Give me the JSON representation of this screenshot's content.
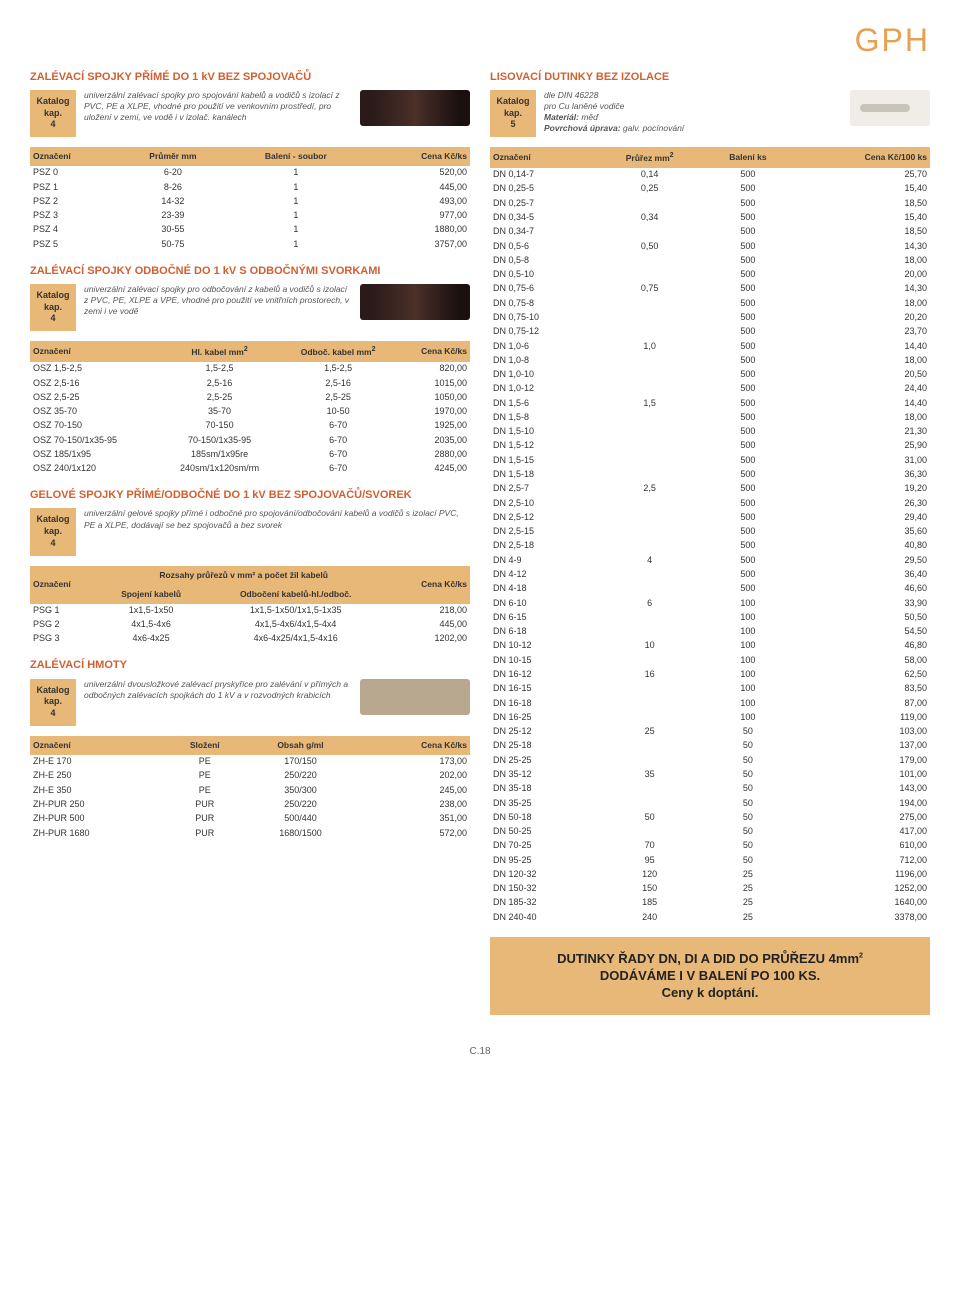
{
  "brand": "GPH",
  "page_num": "C.18",
  "left_sections": [
    {
      "title": "ZALÉVACÍ SPOJKY PŘÍMÉ DO 1 kV BEZ SPOJOVAČŮ",
      "kap": [
        "Katalog",
        "kap.",
        "4"
      ],
      "desc": "univerzální zalévací spojky pro spojování kabelů a vodičů s izolací z PVC, PE a XLPE, vhodné pro použití ve venkovním prostředí, pro uložení v zemi, ve vodě i v izolač. kanálech",
      "headers": [
        "Označení",
        "Průměr mm",
        "Balení - soubor",
        "Cena Kč/ks"
      ],
      "rows": [
        [
          "PSZ 0",
          "6-20",
          "1",
          "520,00"
        ],
        [
          "PSZ 1",
          "8-26",
          "1",
          "445,00"
        ],
        [
          "PSZ 2",
          "14-32",
          "1",
          "493,00"
        ],
        [
          "PSZ 3",
          "23-39",
          "1",
          "977,00"
        ],
        [
          "PSZ 4",
          "30-55",
          "1",
          "1880,00"
        ],
        [
          "PSZ 5",
          "50-75",
          "1",
          "3757,00"
        ]
      ]
    },
    {
      "title": "ZALÉVACÍ SPOJKY ODBOČNÉ DO 1 kV S ODBOČNÝMI SVORKAMI",
      "kap": [
        "Katalog",
        "kap.",
        "4"
      ],
      "desc": "univerzální zalévací spojky pro odbočování z kabelů a vodičů s izolací z PVC, PE, XLPE a VPE, vhodné pro použití ve vnitřních prostorech, v zemi i ve vodě",
      "headers": [
        "Označení",
        "Hl. kabel mm²",
        "Odboč. kabel mm²",
        "Cena Kč/ks"
      ],
      "rows": [
        [
          "OSZ 1,5-2,5",
          "1,5-2,5",
          "1,5-2,5",
          "820,00"
        ],
        [
          "OSZ 2,5-16",
          "2,5-16",
          "2,5-16",
          "1015,00"
        ],
        [
          "OSZ 2,5-25",
          "2,5-25",
          "2,5-25",
          "1050,00"
        ],
        [
          "OSZ 35-70",
          "35-70",
          "10-50",
          "1970,00"
        ],
        [
          "OSZ 70-150",
          "70-150",
          "6-70",
          "1925,00"
        ],
        [
          "OSZ 70-150/1x35-95",
          "70-150/1x35-95",
          "6-70",
          "2035,00"
        ],
        [
          "OSZ 185/1x95",
          "185sm/1x95re",
          "6-70",
          "2880,00"
        ],
        [
          "OSZ 240/1x120",
          "240sm/1x120sm/rm",
          "6-70",
          "4245,00"
        ]
      ]
    },
    {
      "title": "GELOVÉ SPOJKY PŘÍMÉ/ODBOČNÉ DO 1 kV BEZ SPOJOVAČŮ/SVOREK",
      "kap": [
        "Katalog",
        "kap.",
        "4"
      ],
      "desc": "univerzální gelové spojky přímé i odbočné pro spojování/odbočování kabelů a vodičů s izolací PVC, PE a XLPE, dodávají se bez spojovačů a bez svorek",
      "supheader": "Rozsahy průřezů v mm² a počet žil kabelů",
      "headers": [
        "Označení",
        "Spojení kabelů",
        "Odbočení kabelů-hl./odboč.",
        "Cena Kč/ks"
      ],
      "rows": [
        [
          "PSG 1",
          "1x1,5-1x50",
          "1x1,5-1x50/1x1,5-1x35",
          "218,00"
        ],
        [
          "PSG 2",
          "4x1,5-4x6",
          "4x1,5-4x6/4x1,5-4x4",
          "445,00"
        ],
        [
          "PSG 3",
          "4x6-4x25",
          "4x6-4x25/4x1,5-4x16",
          "1202,00"
        ]
      ]
    },
    {
      "title": "ZALÉVACÍ HMOTY",
      "kap": [
        "Katalog",
        "kap.",
        "4"
      ],
      "desc": "univerzální dvousložkové zalévací pryskyřice pro zalévání v přímých a odbočných zalévacích spojkách do 1 kV a v rozvodných krabicích",
      "headers": [
        "Označení",
        "Složení",
        "Obsah g/ml",
        "Cena Kč/ks"
      ],
      "rows": [
        [
          "ZH-E 170",
          "PE",
          "170/150",
          "173,00"
        ],
        [
          "ZH-E 250",
          "PE",
          "250/220",
          "202,00"
        ],
        [
          "ZH-E 350",
          "PE",
          "350/300",
          "245,00"
        ],
        [
          "ZH-PUR 250",
          "PUR",
          "250/220",
          "238,00"
        ],
        [
          "ZH-PUR 500",
          "PUR",
          "500/440",
          "351,00"
        ],
        [
          "ZH-PUR 1680",
          "PUR",
          "1680/1500",
          "572,00"
        ]
      ]
    }
  ],
  "right_section": {
    "title": "LISOVACÍ DUTINKY BEZ IZOLACE",
    "kap": [
      "Katalog",
      "kap.",
      "5"
    ],
    "desc_lines": [
      "dle DIN 46228",
      "pro Cu laněné vodiče",
      "Materiál: měď",
      "Povrchová úprava: galv. pocínování"
    ],
    "headers": [
      "Označení",
      "Průřez mm²",
      "Balení ks",
      "Cena Kč/100 ks"
    ],
    "rows": [
      [
        "DN 0,14-7",
        "0,14",
        "500",
        "25,70"
      ],
      [
        "DN 0,25-5",
        "0,25",
        "500",
        "15,40"
      ],
      [
        "DN 0,25-7",
        "",
        "500",
        "18,50"
      ],
      [
        "DN 0,34-5",
        "0,34",
        "500",
        "15,40"
      ],
      [
        "DN 0,34-7",
        "",
        "500",
        "18,50"
      ],
      [
        "DN 0,5-6",
        "0,50",
        "500",
        "14,30"
      ],
      [
        "DN 0,5-8",
        "",
        "500",
        "18,00"
      ],
      [
        "DN 0,5-10",
        "",
        "500",
        "20,00"
      ],
      [
        "DN 0,75-6",
        "0,75",
        "500",
        "14,30"
      ],
      [
        "DN 0,75-8",
        "",
        "500",
        "18,00"
      ],
      [
        "DN 0,75-10",
        "",
        "500",
        "20,20"
      ],
      [
        "DN 0,75-12",
        "",
        "500",
        "23,70"
      ],
      [
        "DN 1,0-6",
        "1,0",
        "500",
        "14,40"
      ],
      [
        "DN 1,0-8",
        "",
        "500",
        "18,00"
      ],
      [
        "DN 1,0-10",
        "",
        "500",
        "20,50"
      ],
      [
        "DN 1,0-12",
        "",
        "500",
        "24,40"
      ],
      [
        "DN 1,5-6",
        "1,5",
        "500",
        "14,40"
      ],
      [
        "DN 1,5-8",
        "",
        "500",
        "18,00"
      ],
      [
        "DN 1,5-10",
        "",
        "500",
        "21,30"
      ],
      [
        "DN 1,5-12",
        "",
        "500",
        "25,90"
      ],
      [
        "DN 1,5-15",
        "",
        "500",
        "31,00"
      ],
      [
        "DN 1,5-18",
        "",
        "500",
        "36,30"
      ],
      [
        "DN 2,5-7",
        "2,5",
        "500",
        "19,20"
      ],
      [
        "DN 2,5-10",
        "",
        "500",
        "26,30"
      ],
      [
        "DN 2,5-12",
        "",
        "500",
        "29,40"
      ],
      [
        "DN 2,5-15",
        "",
        "500",
        "35,60"
      ],
      [
        "DN 2,5-18",
        "",
        "500",
        "40,80"
      ],
      [
        "DN 4-9",
        "4",
        "500",
        "29,50"
      ],
      [
        "DN 4-12",
        "",
        "500",
        "36,40"
      ],
      [
        "DN 4-18",
        "",
        "500",
        "46,60"
      ],
      [
        "DN 6-10",
        "6",
        "100",
        "33,90"
      ],
      [
        "DN 6-15",
        "",
        "100",
        "50,50"
      ],
      [
        "DN 6-18",
        "",
        "100",
        "54,50"
      ],
      [
        "DN 10-12",
        "10",
        "100",
        "46,80"
      ],
      [
        "DN 10-15",
        "",
        "100",
        "58,00"
      ],
      [
        "DN 16-12",
        "16",
        "100",
        "62,50"
      ],
      [
        "DN 16-15",
        "",
        "100",
        "83,50"
      ],
      [
        "DN 16-18",
        "",
        "100",
        "87,00"
      ],
      [
        "DN 16-25",
        "",
        "100",
        "119,00"
      ],
      [
        "DN 25-12",
        "25",
        "50",
        "103,00"
      ],
      [
        "DN 25-18",
        "",
        "50",
        "137,00"
      ],
      [
        "DN 25-25",
        "",
        "50",
        "179,00"
      ],
      [
        "DN 35-12",
        "35",
        "50",
        "101,00"
      ],
      [
        "DN 35-18",
        "",
        "50",
        "143,00"
      ],
      [
        "DN 35-25",
        "",
        "50",
        "194,00"
      ],
      [
        "DN 50-18",
        "50",
        "50",
        "275,00"
      ],
      [
        "DN 50-25",
        "",
        "50",
        "417,00"
      ],
      [
        "DN 70-25",
        "70",
        "50",
        "610,00"
      ],
      [
        "DN 95-25",
        "95",
        "50",
        "712,00"
      ],
      [
        "DN 120-32",
        "120",
        "25",
        "1196,00"
      ],
      [
        "DN 150-32",
        "150",
        "25",
        "1252,00"
      ],
      [
        "DN 185-32",
        "185",
        "25",
        "1640,00"
      ],
      [
        "DN 240-40",
        "240",
        "25",
        "3378,00"
      ]
    ]
  },
  "promo": [
    "DUTINKY ŘADY DN, DI A DID DO PRŮŘEZU 4mm²",
    "DODÁVÁME I V BALENÍ PO 100 KS.",
    "Ceny k doptání."
  ]
}
